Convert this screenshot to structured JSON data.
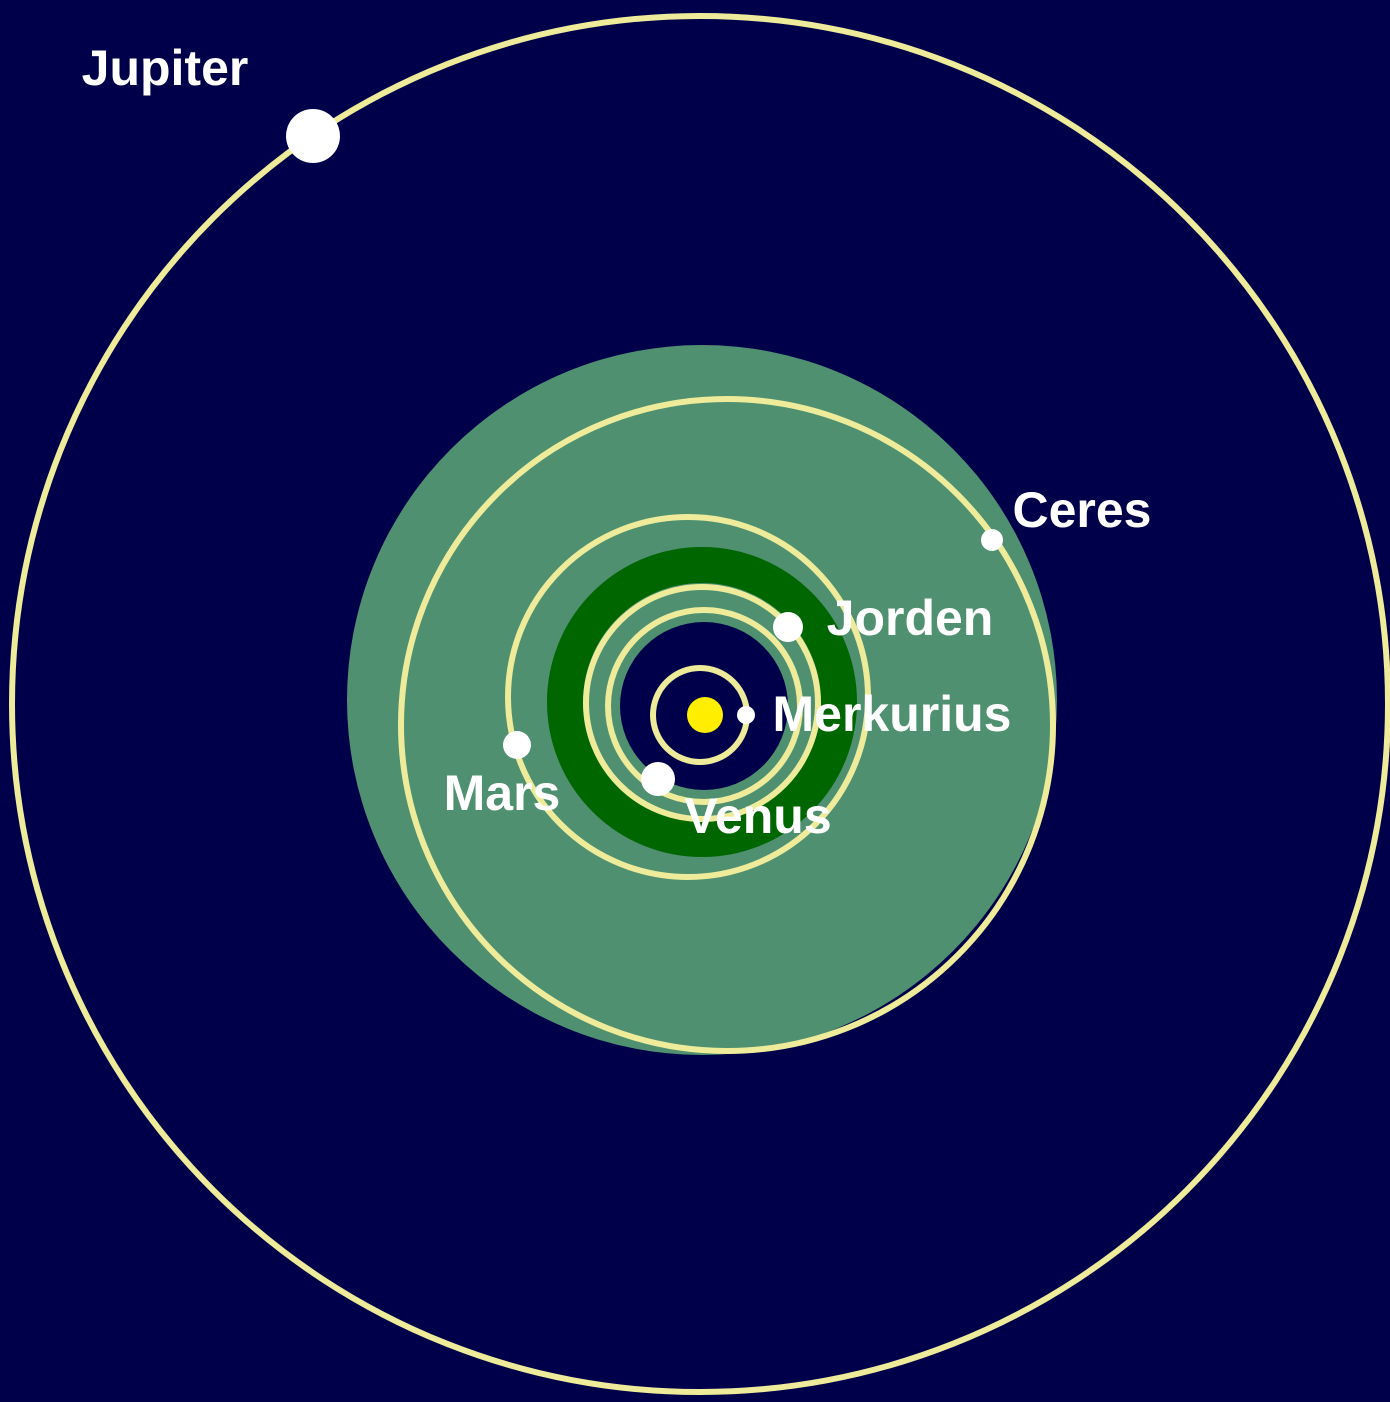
{
  "nodes": [
    {
      "label": "Jupiter"
    },
    {
      "label": "Ceres"
    },
    {
      "label": "Jorden"
    },
    {
      "label": "Merkurius"
    },
    {
      "label": "Mars"
    },
    {
      "label": "Venus"
    }
  ]
}
